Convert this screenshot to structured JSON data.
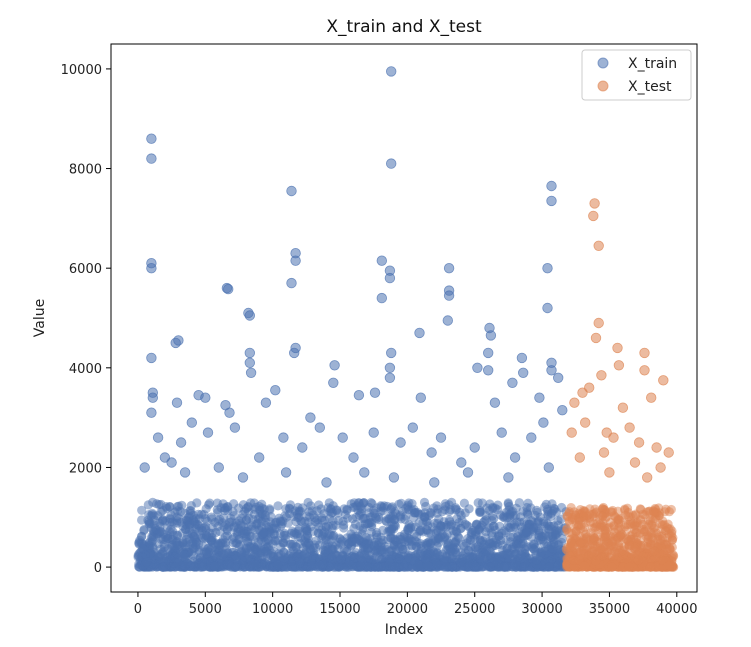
{
  "chart_data": {
    "type": "scatter",
    "title": "X_train and X_test",
    "xlabel": "Index",
    "ylabel": "Value",
    "xlim": [
      -2000,
      41500
    ],
    "ylim": [
      -500,
      10500
    ],
    "xticks": [
      0,
      5000,
      10000,
      15000,
      20000,
      25000,
      30000,
      35000,
      40000
    ],
    "yticks": [
      0,
      2000,
      4000,
      6000,
      8000,
      10000
    ],
    "grid": false,
    "legend": "top-right",
    "series": [
      {
        "name": "X_train",
        "color": "#4c72b0",
        "x_range": [
          0,
          31800
        ],
        "bulk_max": 1300,
        "points": [
          [
            1000,
            8600
          ],
          [
            1000,
            8200
          ],
          [
            1000,
            6100
          ],
          [
            1000,
            6000
          ],
          [
            1000,
            4200
          ],
          [
            1100,
            3500
          ],
          [
            1100,
            3400
          ],
          [
            1000,
            3100
          ],
          [
            2800,
            4500
          ],
          [
            3000,
            4550
          ],
          [
            2900,
            3300
          ],
          [
            4500,
            3450
          ],
          [
            5000,
            3400
          ],
          [
            6600,
            5600
          ],
          [
            6700,
            5580
          ],
          [
            6500,
            3250
          ],
          [
            6800,
            3100
          ],
          [
            8200,
            5100
          ],
          [
            8300,
            5050
          ],
          [
            8300,
            4300
          ],
          [
            8300,
            4100
          ],
          [
            8400,
            3900
          ],
          [
            10200,
            3550
          ],
          [
            11400,
            7550
          ],
          [
            11400,
            5700
          ],
          [
            11700,
            6300
          ],
          [
            11700,
            6150
          ],
          [
            11700,
            4400
          ],
          [
            11600,
            4300
          ],
          [
            14600,
            4050
          ],
          [
            14500,
            3700
          ],
          [
            16400,
            3450
          ],
          [
            17600,
            3500
          ],
          [
            18100,
            6150
          ],
          [
            18100,
            5400
          ],
          [
            18700,
            5950
          ],
          [
            18700,
            5800
          ],
          [
            18800,
            8100
          ],
          [
            18800,
            9950
          ],
          [
            18800,
            4300
          ],
          [
            18700,
            4000
          ],
          [
            18700,
            3800
          ],
          [
            20900,
            4700
          ],
          [
            21000,
            3400
          ],
          [
            23100,
            5550
          ],
          [
            23100,
            5450
          ],
          [
            23100,
            6000
          ],
          [
            23000,
            4950
          ],
          [
            25200,
            4000
          ],
          [
            26100,
            4800
          ],
          [
            26200,
            4650
          ],
          [
            26000,
            4300
          ],
          [
            26000,
            3950
          ],
          [
            27800,
            3700
          ],
          [
            28500,
            4200
          ],
          [
            28600,
            3900
          ],
          [
            30400,
            6000
          ],
          [
            30400,
            5200
          ],
          [
            30700,
            7650
          ],
          [
            30700,
            7350
          ],
          [
            30700,
            4100
          ],
          [
            30700,
            3950
          ],
          [
            31200,
            3800
          ],
          [
            29800,
            3400
          ],
          [
            31500,
            3150
          ],
          [
            1500,
            2600
          ],
          [
            2000,
            2200
          ],
          [
            2500,
            2100
          ],
          [
            3200,
            2500
          ],
          [
            4000,
            2900
          ],
          [
            5200,
            2700
          ],
          [
            6000,
            2000
          ],
          [
            7200,
            2800
          ],
          [
            9000,
            2200
          ],
          [
            10800,
            2600
          ],
          [
            12200,
            2400
          ],
          [
            13500,
            2800
          ],
          [
            15200,
            2600
          ],
          [
            16000,
            2200
          ],
          [
            17500,
            2700
          ],
          [
            19500,
            2500
          ],
          [
            20400,
            2800
          ],
          [
            21800,
            2300
          ],
          [
            22500,
            2600
          ],
          [
            24000,
            2100
          ],
          [
            25000,
            2400
          ],
          [
            27000,
            2700
          ],
          [
            28000,
            2200
          ],
          [
            29200,
            2600
          ],
          [
            30100,
            2900
          ],
          [
            500,
            2000
          ],
          [
            3500,
            1900
          ],
          [
            7800,
            1800
          ],
          [
            11000,
            1900
          ],
          [
            14000,
            1700
          ],
          [
            16800,
            1900
          ],
          [
            19000,
            1800
          ],
          [
            22000,
            1700
          ],
          [
            24500,
            1900
          ],
          [
            27500,
            1800
          ],
          [
            30500,
            2000
          ],
          [
            12800,
            3000
          ],
          [
            9500,
            3300
          ],
          [
            26500,
            3300
          ]
        ]
      },
      {
        "name": "X_test",
        "color": "#dd8452",
        "x_range": [
          31800,
          39800
        ],
        "bulk_max": 1200,
        "points": [
          [
            33900,
            7300
          ],
          [
            33800,
            7050
          ],
          [
            34200,
            6450
          ],
          [
            34200,
            4900
          ],
          [
            34000,
            4600
          ],
          [
            35600,
            4400
          ],
          [
            35700,
            4050
          ],
          [
            37600,
            4300
          ],
          [
            37600,
            3950
          ],
          [
            39000,
            3750
          ],
          [
            33500,
            3600
          ],
          [
            34400,
            3850
          ],
          [
            33000,
            3500
          ],
          [
            32400,
            3300
          ],
          [
            36000,
            3200
          ],
          [
            38100,
            3400
          ],
          [
            33200,
            2900
          ],
          [
            34800,
            2700
          ],
          [
            35300,
            2600
          ],
          [
            36500,
            2800
          ],
          [
            37200,
            2500
          ],
          [
            38500,
            2400
          ],
          [
            39400,
            2300
          ],
          [
            32800,
            2200
          ],
          [
            36900,
            2100
          ],
          [
            38800,
            2000
          ],
          [
            35000,
            1900
          ],
          [
            37800,
            1800
          ],
          [
            32200,
            2700
          ],
          [
            34600,
            2300
          ]
        ]
      }
    ]
  }
}
